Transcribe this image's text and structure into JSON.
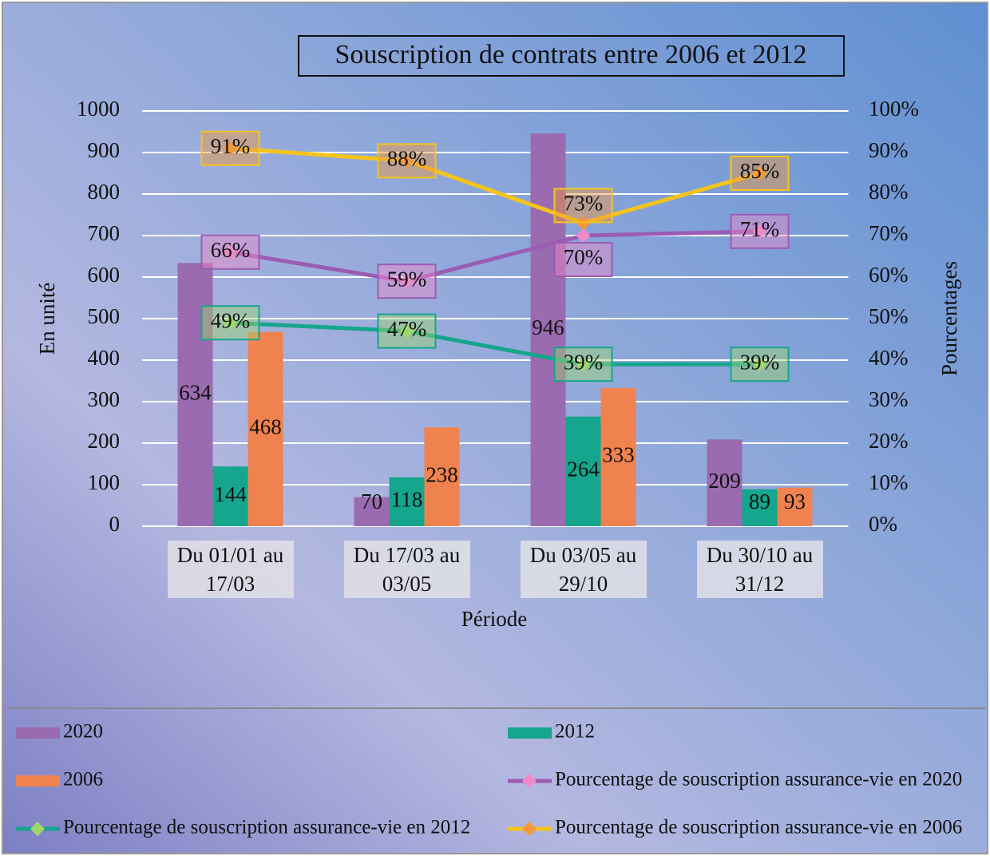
{
  "chart_data": {
    "type": "bar_line_combo",
    "title": "Souscription de contrats entre 2006 et 2012",
    "y_label": "En unité",
    "y2_label": "Pourcentages",
    "x_label": "Période",
    "categories": [
      "Du 01/01 au 17/03",
      "Du 17/03 au 03/05",
      "Du 03/05 au 29/10",
      "Du 30/10 au 31/12"
    ],
    "ylim": [
      0,
      1000
    ],
    "yticks": [
      0,
      100,
      200,
      300,
      400,
      500,
      600,
      700,
      800,
      900,
      1000
    ],
    "y2lim": [
      0,
      100
    ],
    "y2ticks": [
      {
        "value": 0,
        "label": "0%"
      },
      {
        "value": 10,
        "label": "10%"
      },
      {
        "value": 20,
        "label": "20%"
      },
      {
        "value": 30,
        "label": "30%"
      },
      {
        "value": 40,
        "label": "40%"
      },
      {
        "value": 50,
        "label": "50%"
      },
      {
        "value": 60,
        "label": "60%"
      },
      {
        "value": 70,
        "label": "70%"
      },
      {
        "value": 80,
        "label": "80%"
      },
      {
        "value": 90,
        "label": "90%"
      },
      {
        "value": 100,
        "label": "100%"
      }
    ],
    "grid": true,
    "series": [
      {
        "name": "2020",
        "type": "bar",
        "color": "#9a6bb0",
        "values": [
          634,
          70,
          946,
          209
        ]
      },
      {
        "name": "2012",
        "type": "bar",
        "color": "#16a58d",
        "values": [
          144,
          118,
          264,
          89
        ]
      },
      {
        "name": "2006",
        "type": "bar",
        "color": "#f0824f",
        "values": [
          468,
          238,
          333,
          93
        ]
      },
      {
        "name": "Pourcentage de souscription assurance-vie en 2020",
        "type": "line",
        "axis": "y2",
        "color": "#9a5cb4",
        "marker_color": "#f08ac8",
        "values": [
          66,
          59,
          70,
          71
        ],
        "value_labels": [
          "66%",
          "59%",
          "70%",
          "71%"
        ]
      },
      {
        "name": "Pourcentage de souscription assurance-vie en 2012",
        "type": "line",
        "axis": "y2",
        "color": "#16a58d",
        "marker_color": "#9ed86a",
        "values": [
          49,
          47,
          39,
          39
        ],
        "value_labels": [
          "49%",
          "47%",
          "39%",
          "39%"
        ]
      },
      {
        "name": "Pourcentage de souscription assurance-vie en 2006",
        "type": "line",
        "axis": "y2",
        "color": "#f5c41c",
        "marker_color": "#f59a3a",
        "values": [
          91,
          88,
          73,
          85
        ],
        "value_labels": [
          "91%",
          "88%",
          "73%",
          "85%"
        ]
      }
    ]
  }
}
